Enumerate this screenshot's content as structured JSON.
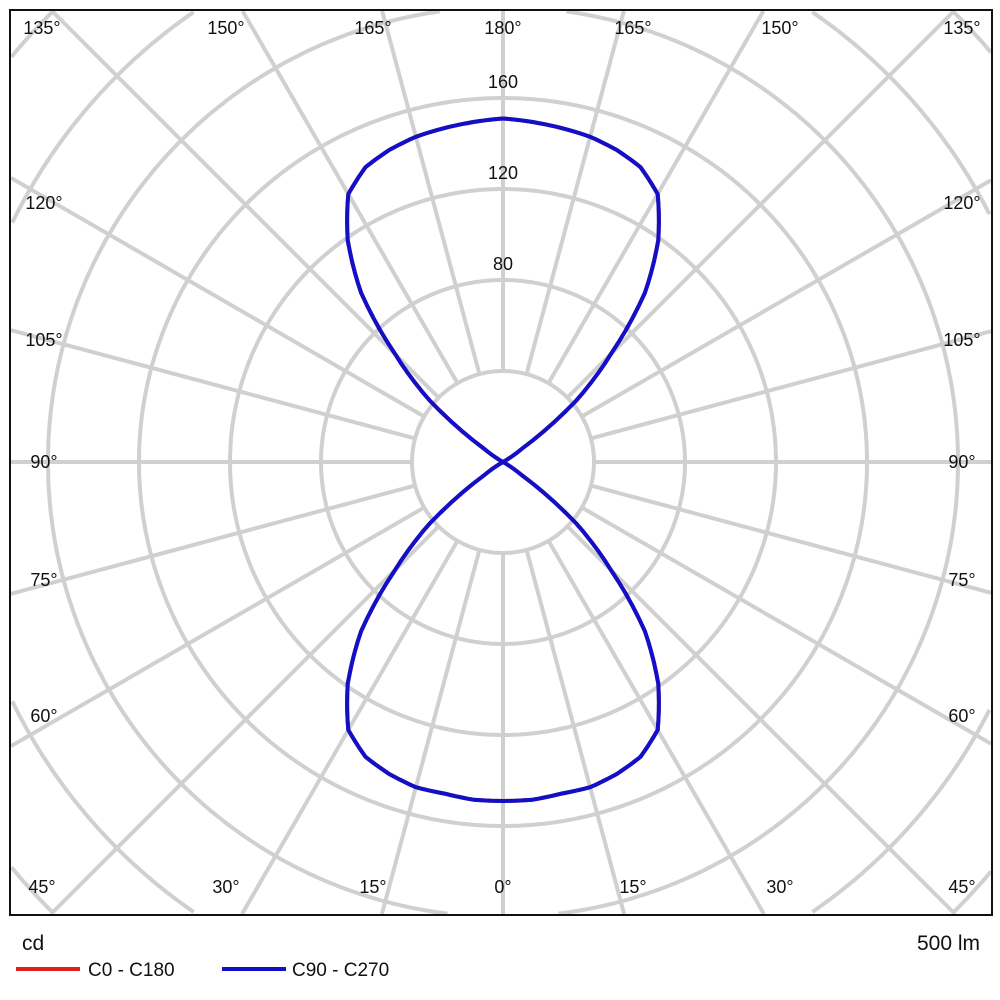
{
  "chart_data": {
    "type": "polar-line",
    "unit_label": "cd",
    "flux_label": "500 lm",
    "radial_ticks": [
      80,
      120,
      160
    ],
    "radial_step": 40,
    "angle_step_deg": 15,
    "angle_labels": {
      "top": [
        "135°",
        "150°",
        "165°",
        "180°",
        "165°",
        "150°",
        "135°"
      ],
      "left": [
        "120°",
        "105°",
        "90°",
        "75°",
        "60°"
      ],
      "right": [
        "120°",
        "105°",
        "90°",
        "75°",
        "60°"
      ],
      "bottom": [
        "45°",
        "30°",
        "15°",
        "0°",
        "15°",
        "30°",
        "45°"
      ]
    },
    "gamma_deg": [
      0,
      5,
      10,
      15,
      20,
      25,
      30,
      35,
      40,
      45,
      50,
      55,
      60,
      90,
      120,
      125,
      130,
      135,
      140,
      145,
      150,
      155,
      160,
      165,
      170,
      175,
      180
    ],
    "series": [
      {
        "name": "C0 - C180",
        "color": "#e0201c",
        "values": [
          149,
          149,
          148,
          148,
          146,
          143,
          136,
          119,
          97,
          67,
          42,
          10,
          0,
          0,
          0,
          10,
          42,
          67,
          97,
          119,
          136,
          143,
          146,
          148,
          149,
          150,
          151
        ]
      },
      {
        "name": "C90 - C270",
        "color": "#1010c8",
        "values": [
          149,
          149,
          148,
          148,
          146,
          143,
          136,
          119,
          97,
          67,
          42,
          10,
          0,
          0,
          0,
          10,
          42,
          67,
          97,
          119,
          136,
          143,
          146,
          148,
          149,
          150,
          151
        ]
      }
    ],
    "grid": true,
    "grid_color": "#d0d0d0",
    "legend_placement": "bottom-left"
  }
}
